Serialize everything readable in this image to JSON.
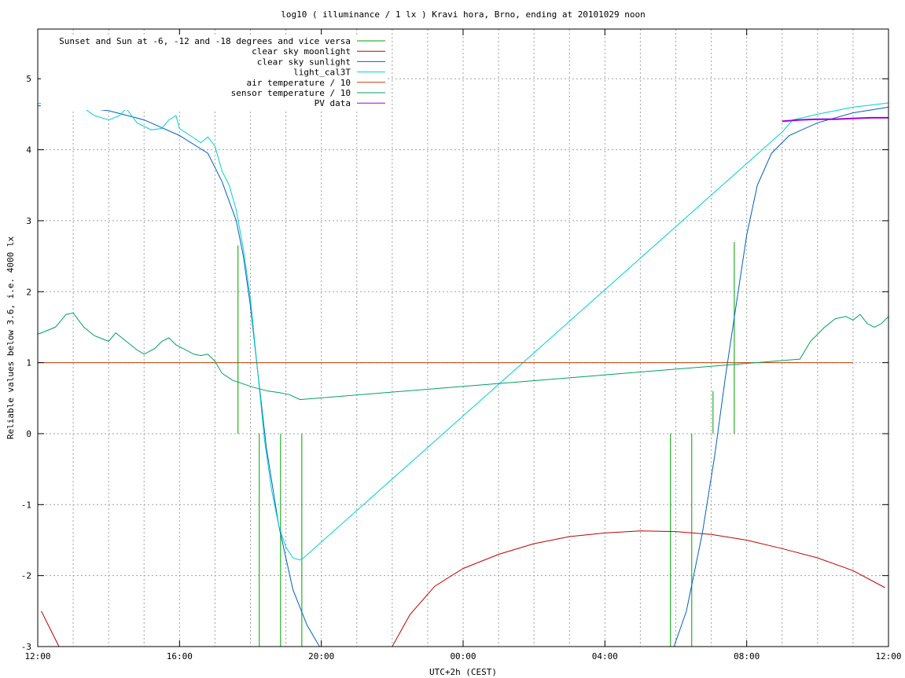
{
  "chart_data": {
    "type": "line",
    "title": "log10 ( illuminance / 1 lx ) Kravi hora, Brno, ending at 20101029 noon",
    "xlabel": "UTC+2h (CEST)",
    "ylabel": "Reliable values below 3.6, i.e. 4000 lx",
    "xlim": [
      0,
      24
    ],
    "ylim": [
      -3,
      5.7
    ],
    "x_ticks": [
      {
        "x": 0,
        "label": "12:00"
      },
      {
        "x": 4,
        "label": "16:00"
      },
      {
        "x": 8,
        "label": "20:00"
      },
      {
        "x": 12,
        "label": "00:00"
      },
      {
        "x": 16,
        "label": "04:00"
      },
      {
        "x": 20,
        "label": "08:00"
      },
      {
        "x": 24,
        "label": "12:00"
      }
    ],
    "y_ticks": [
      {
        "y": -3,
        "label": "-3"
      },
      {
        "y": -2,
        "label": "-2"
      },
      {
        "y": -1,
        "label": "-1"
      },
      {
        "y": 0,
        "label": "0"
      },
      {
        "y": 1,
        "label": "1"
      },
      {
        "y": 2,
        "label": "2"
      },
      {
        "y": 3,
        "label": "3"
      },
      {
        "y": 4,
        "label": "4"
      },
      {
        "y": 5,
        "label": "5"
      }
    ],
    "grid": true,
    "legend_position": "top-left",
    "series": [
      {
        "name": "Sunset and Sun at -6, -12 and -18 degrees and vice versa",
        "color": "#00a000",
        "kind": "vlines",
        "points": [
          [
            5.65,
            0,
            2.65
          ],
          [
            6.25,
            -3,
            0
          ],
          [
            6.85,
            -3,
            0
          ],
          [
            7.45,
            -3,
            0
          ],
          [
            17.85,
            -3,
            0
          ],
          [
            18.45,
            -3,
            0
          ],
          [
            19.05,
            0,
            0.6
          ],
          [
            19.65,
            0,
            2.7
          ]
        ]
      },
      {
        "name": "clear sky moonlight",
        "color": "#c00000",
        "points": [
          [
            0.1,
            -2.5
          ],
          [
            0.3,
            -2.7
          ],
          [
            0.6,
            -3.0
          ],
          [
            10.0,
            -3.0
          ],
          [
            10.5,
            -2.55
          ],
          [
            11.2,
            -2.15
          ],
          [
            12.0,
            -1.9
          ],
          [
            13.0,
            -1.7
          ],
          [
            14.0,
            -1.55
          ],
          [
            15.0,
            -1.45
          ],
          [
            16.0,
            -1.4
          ],
          [
            17.0,
            -1.37
          ],
          [
            18.0,
            -1.38
          ],
          [
            19.0,
            -1.42
          ],
          [
            20.0,
            -1.5
          ],
          [
            21.0,
            -1.62
          ],
          [
            22.0,
            -1.75
          ],
          [
            23.0,
            -1.93
          ],
          [
            23.9,
            -2.17
          ]
        ]
      },
      {
        "name": "clear sky sunlight",
        "color": "#0060c0",
        "points": [
          [
            0,
            4.62
          ],
          [
            1,
            4.61
          ],
          [
            2,
            4.55
          ],
          [
            3,
            4.42
          ],
          [
            4,
            4.2
          ],
          [
            4.8,
            3.95
          ],
          [
            5.2,
            3.55
          ],
          [
            5.6,
            3.0
          ],
          [
            5.8,
            2.5
          ],
          [
            6.0,
            1.8
          ],
          [
            6.2,
            0.9
          ],
          [
            6.45,
            -0.2
          ],
          [
            6.8,
            -1.3
          ],
          [
            7.2,
            -2.2
          ],
          [
            7.6,
            -2.7
          ],
          [
            7.95,
            -3.0
          ],
          [
            17.95,
            -3.0
          ],
          [
            18.3,
            -2.5
          ],
          [
            18.75,
            -1.4
          ],
          [
            19.1,
            -0.3
          ],
          [
            19.4,
            0.8
          ],
          [
            19.7,
            1.8
          ],
          [
            20.0,
            2.8
          ],
          [
            20.3,
            3.5
          ],
          [
            20.7,
            3.95
          ],
          [
            21.2,
            4.2
          ],
          [
            22.0,
            4.38
          ],
          [
            23.0,
            4.52
          ],
          [
            24.0,
            4.6
          ]
        ]
      },
      {
        "name": "light_cal3T",
        "color": "#00d0d0",
        "points": [
          [
            0,
            4.65
          ],
          [
            0.5,
            4.68
          ],
          [
            0.9,
            4.7
          ],
          [
            1.2,
            4.62
          ],
          [
            1.6,
            4.48
          ],
          [
            2.0,
            4.42
          ],
          [
            2.3,
            4.48
          ],
          [
            2.5,
            4.58
          ],
          [
            2.8,
            4.38
          ],
          [
            3.2,
            4.28
          ],
          [
            3.5,
            4.3
          ],
          [
            3.7,
            4.42
          ],
          [
            3.9,
            4.48
          ],
          [
            4.0,
            4.3
          ],
          [
            4.3,
            4.2
          ],
          [
            4.6,
            4.1
          ],
          [
            4.8,
            4.18
          ],
          [
            5.0,
            4.05
          ],
          [
            5.2,
            3.7
          ],
          [
            5.4,
            3.5
          ],
          [
            5.6,
            3.15
          ],
          [
            5.8,
            2.6
          ],
          [
            6.0,
            1.9
          ],
          [
            6.2,
            0.9
          ],
          [
            6.4,
            -0.1
          ],
          [
            6.6,
            -0.8
          ],
          [
            6.8,
            -1.3
          ],
          [
            7.0,
            -1.6
          ],
          [
            7.2,
            -1.75
          ],
          [
            7.4,
            -1.78
          ],
          [
            7.5,
            -1.75
          ],
          [
            21.0,
            4.25
          ],
          [
            21.3,
            4.42
          ],
          [
            22.0,
            4.5
          ],
          [
            22.5,
            4.55
          ],
          [
            23.0,
            4.6
          ],
          [
            23.5,
            4.63
          ],
          [
            24.0,
            4.66
          ]
        ]
      },
      {
        "name": "air temperature / 10",
        "color": "#c04000",
        "points": [
          [
            0,
            1.0
          ],
          [
            23.0,
            1.0
          ]
        ]
      },
      {
        "name": "sensor temperature / 10",
        "color": "#00a060",
        "points": [
          [
            0,
            1.4
          ],
          [
            0.5,
            1.5
          ],
          [
            0.8,
            1.68
          ],
          [
            1.0,
            1.7
          ],
          [
            1.3,
            1.5
          ],
          [
            1.6,
            1.38
          ],
          [
            2.0,
            1.3
          ],
          [
            2.2,
            1.42
          ],
          [
            2.5,
            1.3
          ],
          [
            2.8,
            1.18
          ],
          [
            3.0,
            1.12
          ],
          [
            3.3,
            1.2
          ],
          [
            3.5,
            1.3
          ],
          [
            3.7,
            1.35
          ],
          [
            3.9,
            1.25
          ],
          [
            4.1,
            1.2
          ],
          [
            4.4,
            1.12
          ],
          [
            4.6,
            1.1
          ],
          [
            4.8,
            1.12
          ],
          [
            5.0,
            1.02
          ],
          [
            5.2,
            0.85
          ],
          [
            5.5,
            0.75
          ],
          [
            5.8,
            0.7
          ],
          [
            6.1,
            0.65
          ],
          [
            6.5,
            0.6
          ],
          [
            6.8,
            0.58
          ],
          [
            7.1,
            0.55
          ],
          [
            7.4,
            0.48
          ],
          [
            21.5,
            1.05
          ],
          [
            21.8,
            1.3
          ],
          [
            22.2,
            1.5
          ],
          [
            22.5,
            1.62
          ],
          [
            22.8,
            1.65
          ],
          [
            23.0,
            1.6
          ],
          [
            23.2,
            1.68
          ],
          [
            23.4,
            1.55
          ],
          [
            23.6,
            1.5
          ],
          [
            23.8,
            1.55
          ],
          [
            24.0,
            1.65
          ]
        ]
      },
      {
        "name": "PV data",
        "color": "#a000e0",
        "points": [
          [
            21.0,
            4.4
          ],
          [
            21.5,
            4.42
          ],
          [
            22.0,
            4.43
          ],
          [
            22.5,
            4.43
          ],
          [
            23.0,
            4.44
          ],
          [
            23.5,
            4.45
          ],
          [
            24.0,
            4.45
          ]
        ]
      }
    ]
  }
}
